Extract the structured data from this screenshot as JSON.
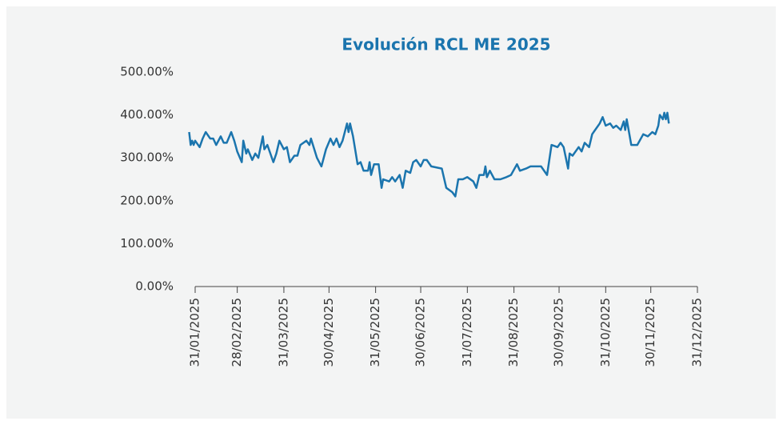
{
  "chart_data": {
    "type": "line",
    "title": "Evolución RCL ME 2025",
    "x": [
      "27/01/2025",
      "28/01/2025",
      "29/01/2025",
      "30/01/2025",
      "31/01/2025",
      "03/02/2025",
      "05/02/2025",
      "07/02/2025",
      "10/02/2025",
      "12/02/2025",
      "14/02/2025",
      "17/02/2025",
      "19/02/2025",
      "21/02/2025",
      "24/02/2025",
      "26/02/2025",
      "28/02/2025",
      "03/03/2025",
      "04/03/2025",
      "06/03/2025",
      "07/03/2025",
      "10/03/2025",
      "12/03/2025",
      "14/03/2025",
      "17/03/2025",
      "18/03/2025",
      "20/03/2025",
      "24/03/2025",
      "26/03/2025",
      "28/03/2025",
      "31/03/2025",
      "02/04/2025",
      "04/04/2025",
      "07/04/2025",
      "09/04/2025",
      "11/04/2025",
      "15/04/2025",
      "17/04/2025",
      "18/04/2025",
      "22/04/2025",
      "25/04/2025",
      "28/04/2025",
      "01/05/2025",
      "03/05/2025",
      "05/05/2025",
      "07/05/2025",
      "09/05/2025",
      "12/05/2025",
      "13/05/2025",
      "14/05/2025",
      "16/05/2025",
      "19/05/2025",
      "21/05/2025",
      "23/05/2025",
      "26/05/2025",
      "27/05/2025",
      "28/05/2025",
      "30/05/2025",
      "02/06/2025",
      "04/06/2025",
      "05/06/2025",
      "09/06/2025",
      "11/06/2025",
      "13/06/2025",
      "16/06/2025",
      "18/06/2025",
      "20/06/2025",
      "23/06/2025",
      "25/06/2025",
      "27/06/2025",
      "30/06/2025",
      "02/07/2025",
      "04/07/2025",
      "07/07/2025",
      "14/07/2025",
      "17/07/2025",
      "21/07/2025",
      "23/07/2025",
      "25/07/2025",
      "28/07/2025",
      "31/07/2025",
      "04/08/2025",
      "06/08/2025",
      "08/08/2025",
      "11/08/2025",
      "12/08/2025",
      "13/08/2025",
      "15/08/2025",
      "18/08/2025",
      "22/08/2025",
      "26/08/2025",
      "29/08/2025",
      "02/09/2025",
      "04/09/2025",
      "08/09/2025",
      "11/09/2025",
      "18/09/2025",
      "22/09/2025",
      "25/09/2025",
      "29/09/2025",
      "01/10/2025",
      "03/10/2025",
      "06/10/2025",
      "07/10/2025",
      "09/10/2025",
      "13/10/2025",
      "15/10/2025",
      "17/10/2025",
      "20/10/2025",
      "22/10/2025",
      "24/10/2025",
      "27/10/2025",
      "29/10/2025",
      "31/10/2025",
      "03/11/2025",
      "05/11/2025",
      "07/11/2025",
      "10/11/2025",
      "12/11/2025",
      "13/11/2025",
      "14/11/2025",
      "17/11/2025",
      "21/11/2025",
      "25/11/2025",
      "28/11/2025",
      "01/12/2025",
      "03/12/2025",
      "05/12/2025",
      "06/12/2025",
      "08/12/2025",
      "09/12/2025",
      "10/12/2025",
      "11/12/2025",
      "12/12/2025"
    ],
    "series": [
      {
        "name": "RCL ME",
        "color": "#1b75ae",
        "values": [
          360,
          330,
          340,
          330,
          340,
          325,
          345,
          360,
          345,
          345,
          330,
          350,
          335,
          335,
          360,
          340,
          315,
          290,
          340,
          310,
          320,
          295,
          310,
          300,
          350,
          320,
          330,
          290,
          310,
          340,
          320,
          325,
          290,
          305,
          305,
          330,
          340,
          330,
          345,
          300,
          280,
          320,
          345,
          330,
          345,
          325,
          340,
          380,
          360,
          380,
          350,
          285,
          290,
          270,
          270,
          290,
          260,
          285,
          285,
          230,
          250,
          245,
          255,
          245,
          260,
          230,
          270,
          265,
          290,
          295,
          280,
          295,
          295,
          280,
          275,
          230,
          220,
          210,
          250,
          250,
          255,
          245,
          230,
          260,
          260,
          280,
          255,
          270,
          250,
          250,
          255,
          260,
          285,
          270,
          275,
          280,
          280,
          260,
          330,
          325,
          335,
          325,
          275,
          310,
          305,
          325,
          315,
          335,
          325,
          355,
          365,
          380,
          395,
          375,
          380,
          370,
          375,
          365,
          385,
          365,
          390,
          330,
          330,
          355,
          350,
          360,
          355,
          375,
          400,
          390,
          405,
          390,
          405,
          380
        ]
      }
    ],
    "xlim": [
      "31/01/2025",
      "31/12/2025"
    ],
    "xticks": [
      "31/01/2025",
      "28/02/2025",
      "31/03/2025",
      "30/04/2025",
      "31/05/2025",
      "30/06/2025",
      "31/07/2025",
      "31/08/2025",
      "30/09/2025",
      "31/10/2025",
      "30/11/2025",
      "31/12/2025"
    ],
    "ylim": [
      0,
      500
    ],
    "yticks": [
      {
        "value": 0,
        "label": "0.00%"
      },
      {
        "value": 100,
        "label": "100.00%"
      },
      {
        "value": 200,
        "label": "200.00%"
      },
      {
        "value": 300,
        "label": "300.00%"
      },
      {
        "value": 400,
        "label": "400.00%"
      },
      {
        "value": 500,
        "label": "500.00%"
      }
    ],
    "grid": false
  }
}
